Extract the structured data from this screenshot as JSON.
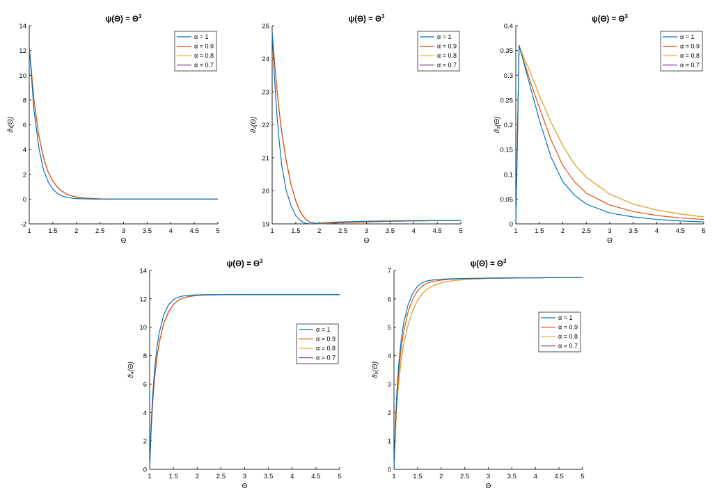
{
  "figure": {
    "colors": {
      "alpha_1": "#0072BD",
      "alpha_0_9": "#D95319",
      "alpha_0_8": "#EDB120",
      "alpha_0_7": "#7E2F8E"
    }
  },
  "chart_data": [
    {
      "type": "line",
      "title": "ψ(Θ) = Θ",
      "title_exponent": "3",
      "xlabel": "Θ",
      "ylabel": "ϑ₁(Θ)",
      "xlim": [
        1,
        5
      ],
      "ylim": [
        -2,
        14
      ],
      "xticks": [
        1,
        1.5,
        2,
        2.5,
        3,
        3.5,
        4,
        4.5,
        5
      ],
      "xtick_labels": [
        "1",
        "1.5",
        "2",
        "2.5",
        "3",
        "3.5",
        "4",
        "4.5",
        "5"
      ],
      "yticks": [
        -2,
        0,
        2,
        4,
        6,
        8,
        10,
        12,
        14
      ],
      "ytick_labels": [
        "-2",
        "0",
        "2",
        "4",
        "6",
        "8",
        "10",
        "12",
        "14"
      ],
      "legend": [
        "α = 1",
        "α = 0.9",
        "α = 0.8",
        "α = 0.7"
      ],
      "legend_location": "top-right",
      "x": [
        1,
        1.1,
        1.2,
        1.3,
        1.4,
        1.5,
        1.6,
        1.7,
        1.8,
        1.9,
        2,
        2.25,
        2.5,
        3,
        3.5,
        4,
        4.5,
        5
      ],
      "series": [
        {
          "name": "α = 1",
          "color_key": "alpha_1",
          "values": [
            12.3,
            7.2,
            4.2,
            2.4,
            1.4,
            0.8,
            0.45,
            0.25,
            0.14,
            0.08,
            0.04,
            0.01,
            0,
            0,
            0,
            0,
            0,
            0
          ]
        },
        {
          "name": "α = 0.9",
          "color_key": "alpha_0_9",
          "values": [
            12.3,
            8.0,
            5.2,
            3.4,
            2.2,
            1.45,
            0.95,
            0.62,
            0.4,
            0.26,
            0.17,
            0.06,
            0.02,
            0,
            0,
            0,
            0,
            0
          ]
        },
        {
          "name": "α = 0.8",
          "color_key": "alpha_0_8",
          "values": [
            12.3,
            8.0,
            5.2,
            3.4,
            2.2,
            1.45,
            0.95,
            0.62,
            0.4,
            0.26,
            0.17,
            0.06,
            0.02,
            0,
            0,
            0,
            0,
            0
          ]
        },
        {
          "name": "α = 0.7",
          "color_key": "alpha_0_7",
          "values": [
            12.3,
            8.0,
            5.2,
            3.4,
            2.2,
            1.45,
            0.95,
            0.62,
            0.4,
            0.26,
            0.17,
            0.06,
            0.02,
            0,
            0,
            0,
            0,
            0
          ]
        }
      ]
    },
    {
      "type": "line",
      "title": "ψ(Θ) = Θ",
      "title_exponent": "3",
      "xlabel": "Θ",
      "ylabel": "ϑ₂(Θ)",
      "xlim": [
        1,
        5
      ],
      "ylim": [
        19,
        25
      ],
      "xticks": [
        1,
        1.5,
        2,
        2.5,
        3,
        3.5,
        4,
        4.5,
        5
      ],
      "xtick_labels": [
        "1",
        "1.5",
        "2",
        "2.5",
        "3",
        "3.5",
        "4",
        "4.5",
        "5"
      ],
      "yticks": [
        19,
        20,
        21,
        22,
        23,
        24,
        25
      ],
      "ytick_labels": [
        "19",
        "20",
        "21",
        "22",
        "23",
        "24",
        "25"
      ],
      "legend": [
        "α = 1",
        "α = 0.9",
        "α = 0.8",
        "α = 0.7"
      ],
      "legend_location": "top-right",
      "x": [
        1,
        1.05,
        1.1,
        1.15,
        1.2,
        1.3,
        1.4,
        1.5,
        1.6,
        1.7,
        1.8,
        2,
        2.25,
        2.5,
        3,
        3.5,
        4,
        4.5,
        5
      ],
      "series": [
        {
          "name": "α = 1",
          "color_key": "alpha_1",
          "values": [
            24.8,
            23.4,
            22.3,
            21.5,
            20.8,
            20.0,
            19.55,
            19.25,
            19.1,
            19.02,
            19.0,
            19.02,
            19.05,
            19.06,
            19.08,
            19.09,
            19.1,
            19.1,
            19.1
          ]
        },
        {
          "name": "α = 0.9",
          "color_key": "alpha_0_9",
          "values": [
            24.8,
            23.9,
            23.1,
            22.4,
            21.8,
            20.9,
            20.2,
            19.7,
            19.35,
            19.15,
            19.05,
            19.0,
            19.02,
            19.04,
            19.06,
            19.08,
            19.09,
            19.1,
            19.1
          ]
        },
        {
          "name": "α = 0.8",
          "color_key": "alpha_0_8",
          "values": [
            24.8,
            23.9,
            23.1,
            22.4,
            21.8,
            20.9,
            20.2,
            19.7,
            19.35,
            19.15,
            19.05,
            19.0,
            19.02,
            19.04,
            19.06,
            19.08,
            19.09,
            19.1,
            19.1
          ]
        },
        {
          "name": "α = 0.7",
          "color_key": "alpha_0_7",
          "values": [
            24.8,
            23.9,
            23.1,
            22.4,
            21.8,
            20.9,
            20.2,
            19.7,
            19.35,
            19.15,
            19.05,
            19.0,
            19.02,
            19.04,
            19.06,
            19.08,
            19.09,
            19.1,
            19.1
          ]
        }
      ]
    },
    {
      "type": "line",
      "title": "ψ(Θ) = Θ",
      "title_exponent": "3",
      "xlabel": "Θ",
      "ylabel": "ϑ₃(Θ)",
      "xlim": [
        1,
        5
      ],
      "ylim": [
        0,
        0.4
      ],
      "xticks": [
        1,
        1.5,
        2,
        2.5,
        3,
        3.5,
        4,
        4.5,
        5
      ],
      "xtick_labels": [
        "1",
        "1.5",
        "2",
        "2.5",
        "3",
        "3.5",
        "4",
        "4.5",
        "5"
      ],
      "yticks": [
        0,
        0.05,
        0.1,
        0.15,
        0.2,
        0.25,
        0.3,
        0.35,
        0.4
      ],
      "ytick_labels": [
        "0",
        "0.05",
        "0.1",
        "0.15",
        "0.2",
        "0.25",
        "0.3",
        "0.35",
        "0.4"
      ],
      "legend": [
        "α = 1",
        "α = 0.9",
        "α = 0.8",
        "α = 0.7"
      ],
      "legend_location": "top-right",
      "x": [
        1,
        1.04,
        1.07,
        1.1,
        1.2,
        1.3,
        1.5,
        1.75,
        2,
        2.25,
        2.5,
        3,
        3.5,
        4,
        4.5,
        5
      ],
      "series": [
        {
          "name": "α = 1",
          "color_key": "alpha_1",
          "values": [
            0,
            0.2,
            0.36,
            0.35,
            0.315,
            0.28,
            0.21,
            0.135,
            0.085,
            0.058,
            0.04,
            0.022,
            0.014,
            0.009,
            0.006,
            0.004
          ]
        },
        {
          "name": "α = 0.9",
          "color_key": "alpha_0_9",
          "values": [
            0,
            0.2,
            0.36,
            0.35,
            0.32,
            0.29,
            0.235,
            0.17,
            0.118,
            0.085,
            0.062,
            0.038,
            0.025,
            0.017,
            0.012,
            0.009
          ]
        },
        {
          "name": "α = 0.8",
          "color_key": "alpha_0_8",
          "values": [
            0,
            0.2,
            0.36,
            0.352,
            0.33,
            0.308,
            0.26,
            0.205,
            0.158,
            0.12,
            0.094,
            0.06,
            0.04,
            0.028,
            0.02,
            0.014
          ]
        },
        {
          "name": "α = 0.7",
          "color_key": "alpha_0_7",
          "values": [
            0,
            0.2,
            0.36,
            0.352,
            0.33,
            0.308,
            0.26,
            0.205,
            0.158,
            0.12,
            0.094,
            0.06,
            0.04,
            0.028,
            0.02,
            0.014
          ]
        }
      ]
    },
    {
      "type": "line",
      "title": "ψ(Θ) = Θ",
      "title_exponent": "3",
      "xlabel": "Θ",
      "ylabel": "ϑ₄(Θ)",
      "xlim": [
        1,
        5
      ],
      "ylim": [
        0,
        14
      ],
      "xticks": [
        1,
        1.5,
        2,
        2.5,
        3,
        3.5,
        4,
        4.5,
        5
      ],
      "xtick_labels": [
        "1",
        "1.5",
        "2",
        "2.5",
        "3",
        "3.5",
        "4",
        "4.5",
        "5"
      ],
      "yticks": [
        0,
        2,
        4,
        6,
        8,
        10,
        12,
        14
      ],
      "ytick_labels": [
        "0",
        "2",
        "4",
        "6",
        "8",
        "10",
        "12",
        "14"
      ],
      "legend": [
        "α = 1",
        "α = 0.9",
        "α = 0.8",
        "α = 0.7"
      ],
      "legend_location": "center-right",
      "x": [
        1,
        1.03,
        1.06,
        1.1,
        1.15,
        1.2,
        1.3,
        1.4,
        1.5,
        1.6,
        1.7,
        1.8,
        2,
        2.25,
        2.5,
        3,
        3.5,
        4,
        4.5,
        5
      ],
      "series": [
        {
          "name": "α = 1",
          "color_key": "alpha_1",
          "values": [
            0,
            3.0,
            5.0,
            6.9,
            8.5,
            9.6,
            10.9,
            11.6,
            11.95,
            12.12,
            12.2,
            12.25,
            12.28,
            12.3,
            12.3,
            12.3,
            12.3,
            12.3,
            12.3,
            12.3
          ]
        },
        {
          "name": "α = 0.9",
          "color_key": "alpha_0_9",
          "values": [
            0,
            2.7,
            4.5,
            6.3,
            7.8,
            8.9,
            10.3,
            11.1,
            11.6,
            11.9,
            12.05,
            12.15,
            12.24,
            12.28,
            12.29,
            12.3,
            12.3,
            12.3,
            12.3,
            12.3
          ]
        },
        {
          "name": "α = 0.8",
          "color_key": "alpha_0_8",
          "values": [
            0,
            2.7,
            4.5,
            6.3,
            7.8,
            8.9,
            10.3,
            11.1,
            11.6,
            11.9,
            12.05,
            12.15,
            12.24,
            12.28,
            12.29,
            12.3,
            12.3,
            12.3,
            12.3,
            12.3
          ]
        },
        {
          "name": "α = 0.7",
          "color_key": "alpha_0_7",
          "values": [
            0,
            2.7,
            4.5,
            6.3,
            7.8,
            8.9,
            10.3,
            11.1,
            11.6,
            11.9,
            12.05,
            12.15,
            12.24,
            12.28,
            12.29,
            12.3,
            12.3,
            12.3,
            12.3,
            12.3
          ]
        }
      ]
    },
    {
      "type": "line",
      "title": "ψ(Θ) = Θ",
      "title_exponent": "3",
      "xlabel": "Θ",
      "ylabel": "ϑ₅(Θ)",
      "xlim": [
        1,
        5
      ],
      "ylim": [
        0,
        7
      ],
      "xticks": [
        1,
        1.5,
        2,
        2.5,
        3,
        3.5,
        4,
        4.5,
        5
      ],
      "xtick_labels": [
        "1",
        "1.5",
        "2",
        "2.5",
        "3",
        "3.5",
        "4",
        "4.5",
        "5"
      ],
      "yticks": [
        0,
        1,
        2,
        3,
        4,
        5,
        6,
        7
      ],
      "ytick_labels": [
        "0",
        "1",
        "2",
        "3",
        "4",
        "5",
        "6",
        "7"
      ],
      "legend": [
        "α = 1",
        "α = 0.9",
        "α = 0.8",
        "α = 0.7"
      ],
      "legend_location": "center-right",
      "x": [
        1,
        1.03,
        1.06,
        1.1,
        1.15,
        1.2,
        1.3,
        1.4,
        1.5,
        1.6,
        1.7,
        1.8,
        2,
        2.25,
        2.5,
        3,
        3.5,
        4,
        4.5,
        5
      ],
      "series": [
        {
          "name": "α = 1",
          "color_key": "alpha_1",
          "values": [
            0,
            1.6,
            2.7,
            3.7,
            4.5,
            5.1,
            5.8,
            6.2,
            6.45,
            6.57,
            6.63,
            6.66,
            6.69,
            6.71,
            6.72,
            6.73,
            6.74,
            6.74,
            6.75,
            6.75
          ]
        },
        {
          "name": "α = 0.9",
          "color_key": "alpha_0_9",
          "values": [
            0,
            1.45,
            2.45,
            3.4,
            4.2,
            4.8,
            5.55,
            6.0,
            6.28,
            6.45,
            6.55,
            6.6,
            6.66,
            6.7,
            6.71,
            6.73,
            6.74,
            6.74,
            6.75,
            6.75
          ]
        },
        {
          "name": "α = 0.8",
          "color_key": "alpha_0_8",
          "values": [
            0,
            1.3,
            2.2,
            3.05,
            3.8,
            4.35,
            5.1,
            5.6,
            5.95,
            6.18,
            6.34,
            6.44,
            6.57,
            6.64,
            6.68,
            6.72,
            6.73,
            6.74,
            6.75,
            6.75
          ]
        },
        {
          "name": "α = 0.7",
          "color_key": "alpha_0_7",
          "values": [
            0,
            1.3,
            2.2,
            3.05,
            3.8,
            4.35,
            5.1,
            5.6,
            5.95,
            6.18,
            6.34,
            6.44,
            6.57,
            6.64,
            6.68,
            6.72,
            6.73,
            6.74,
            6.75,
            6.75
          ]
        }
      ]
    }
  ]
}
